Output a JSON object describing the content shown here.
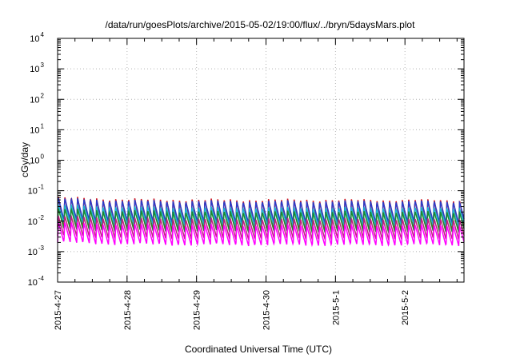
{
  "chart_data": {
    "type": "line",
    "title": "/data/run/goesPlots/archive/2015-05-02/19:00/flux/../bryn/5daysMars.plot",
    "xlabel": "Coordinated Universal Time (UTC)",
    "ylabel": "cGy/day",
    "yscale": "log",
    "ylim": [
      0.0001,
      10000
    ],
    "y_tick_bases": [
      "10",
      "10",
      "10",
      "10",
      "10",
      "10",
      "10",
      "10",
      "10"
    ],
    "y_tick_exponents": [
      "-4",
      "-3",
      "-2",
      "-1",
      "0",
      "1",
      "2",
      "3",
      "4"
    ],
    "x_tick_labels": [
      "2015-4-27",
      "2015-4-28",
      "2015-4-29",
      "2015-4-30",
      "2015-5-1",
      "2015-5-2"
    ],
    "x_range_days": [
      0,
      5.85
    ],
    "grid": true,
    "cycle_hours": 2.2,
    "series": [
      {
        "color": "#d0141e",
        "peak": 0.052,
        "trough": 0.0052
      },
      {
        "color": "#2a3cc8",
        "peak": 0.046,
        "trough": 0.0088
      },
      {
        "color": "#19b4d2",
        "peak": 0.028,
        "trough": 0.0068
      },
      {
        "color": "#1a8a2e",
        "peak": 0.021,
        "trough": 0.0044
      },
      {
        "color": "#c02080",
        "peak": 0.012,
        "trough": 0.0026
      },
      {
        "color": "#ff00ff",
        "peak": 0.0075,
        "trough": 0.0016
      }
    ]
  }
}
